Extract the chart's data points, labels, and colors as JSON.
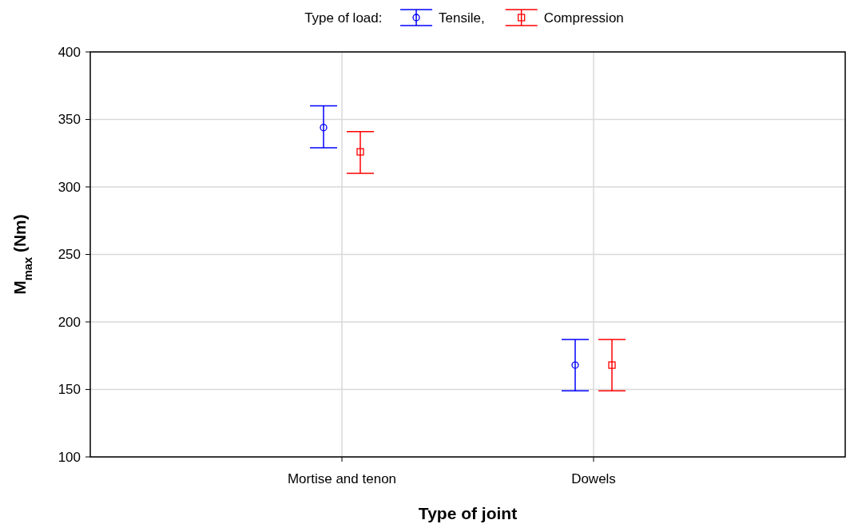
{
  "chart_data": {
    "type": "scatter",
    "xlabel": "Type of joint",
    "ylabel": "M$_{max}$ (Nm)",
    "legend_title": "Type of load:",
    "legend": "top",
    "grid": true,
    "categories": [
      "Mortise and tenon",
      "Dowels"
    ],
    "ylim": [
      100,
      400
    ],
    "yticks": [
      100,
      150,
      200,
      250,
      300,
      350,
      400
    ],
    "series": [
      {
        "name": "Tensile,",
        "color": "#0000ff",
        "marker": "circle",
        "values": [
          344,
          168
        ],
        "errors": [
          [
            329,
            360
          ],
          [
            149,
            187
          ]
        ]
      },
      {
        "name": "Compression",
        "color": "#ff0000",
        "marker": "square",
        "values": [
          326,
          168
        ],
        "errors": [
          [
            310,
            341
          ],
          [
            149,
            187
          ]
        ]
      }
    ]
  }
}
